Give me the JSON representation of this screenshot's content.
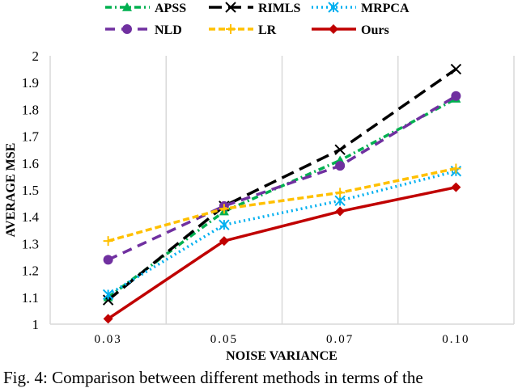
{
  "chart_data": {
    "type": "line",
    "title": "",
    "xlabel": "NOISE VARIANCE",
    "ylabel": "AVERAGE MSE",
    "categories": [
      "0.03",
      "0.05",
      "0.07",
      "0.10"
    ],
    "ylim": [
      1,
      2
    ],
    "yticks": [
      "1",
      "1.1",
      "1.2",
      "1.3",
      "1.4",
      "1.5",
      "1.6",
      "1.7",
      "1.8",
      "1.9",
      "2"
    ],
    "grid": "vertical",
    "legend_placement": "top",
    "series": [
      {
        "name": "APSS",
        "color": "#00b050",
        "marker": "triangle",
        "dash": "8,4,2,4",
        "values": [
          1.1,
          1.42,
          1.61,
          1.84
        ]
      },
      {
        "name": "RIMLS",
        "color": "#000000",
        "marker": "x",
        "dash": "16,8",
        "values": [
          1.09,
          1.44,
          1.65,
          1.95
        ]
      },
      {
        "name": "MRPCA",
        "color": "#00b0f0",
        "marker": "asterisk",
        "dash": "2,4",
        "values": [
          1.11,
          1.37,
          1.46,
          1.57
        ]
      },
      {
        "name": "NLD",
        "color": "#7030a0",
        "marker": "circle",
        "dash": "12,8",
        "values": [
          1.24,
          1.44,
          1.59,
          1.85
        ]
      },
      {
        "name": "LR",
        "color": "#ffc000",
        "marker": "plus",
        "dash": "8,4",
        "values": [
          1.31,
          1.43,
          1.49,
          1.58
        ]
      },
      {
        "name": "Ours",
        "color": "#c00000",
        "marker": "diamond",
        "dash": "",
        "values": [
          1.02,
          1.31,
          1.42,
          1.51
        ]
      }
    ]
  },
  "caption": "Fig. 4: Comparison between different methods in terms of the"
}
